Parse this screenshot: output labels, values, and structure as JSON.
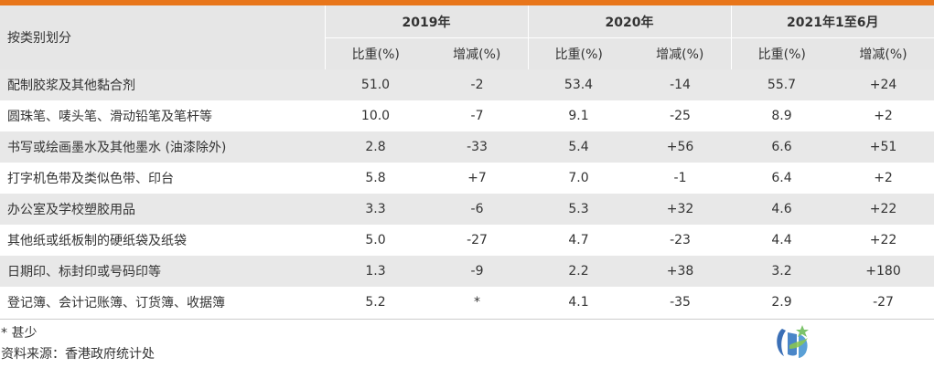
{
  "header": {
    "category": "按类别划分",
    "years": [
      "2019年",
      "2020年",
      "2021年1至6月"
    ],
    "share": "比重(%)",
    "change": "增减(%)"
  },
  "rows": [
    {
      "name": "配制胶浆及其他黏合剂",
      "v": [
        "51.0",
        "-2",
        "53.4",
        "-14",
        "55.7",
        "+24"
      ]
    },
    {
      "name": "圆珠笔、唛头笔、滑动铅笔及笔杆等",
      "v": [
        "10.0",
        "-7",
        "9.1",
        "-25",
        "8.9",
        "+2"
      ]
    },
    {
      "name": "书写或绘画墨水及其他墨水 (油漆除外)",
      "v": [
        "2.8",
        "-33",
        "5.4",
        "+56",
        "6.6",
        "+51"
      ]
    },
    {
      "name": "打字机色带及类似色带、印台",
      "v": [
        "5.8",
        "+7",
        "7.0",
        "-1",
        "6.4",
        "+2"
      ]
    },
    {
      "name": "办公室及学校塑胶用品",
      "v": [
        "3.3",
        "-6",
        "5.3",
        "+32",
        "4.6",
        "+22"
      ]
    },
    {
      "name": "其他纸或纸板制的硬纸袋及纸袋",
      "v": [
        "5.0",
        "-27",
        "4.7",
        "-23",
        "4.4",
        "+22"
      ]
    },
    {
      "name": "日期印、标封印或号码印等",
      "v": [
        "1.3",
        "-9",
        "2.2",
        "+38",
        "3.2",
        "+180"
      ]
    },
    {
      "name": "登记簿、会计记账簿、订货簿、收据簿",
      "v": [
        "5.2",
        "*",
        "4.1",
        "-35",
        "2.9",
        "-27"
      ]
    }
  ],
  "notes": {
    "footnote": "* 甚少",
    "source": "资料来源：香港政府统计处"
  },
  "colors": {
    "accent": "#e8761b",
    "header_bg": "#e6e6e6",
    "stripe": "#e8e8e8"
  },
  "logo_icon": "hktdc-logo-icon"
}
